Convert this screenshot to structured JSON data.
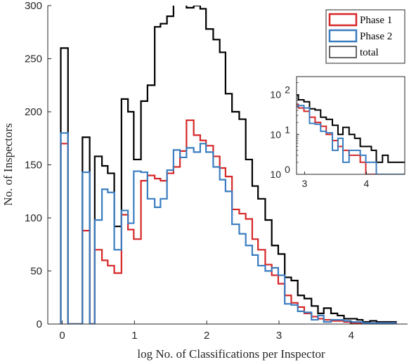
{
  "chart_data": {
    "type": "histogram",
    "xlabel": "log No. of Classifications per Inspector",
    "ylabel": "No. of Inspectors",
    "xlim": [
      -0.2,
      4.78
    ],
    "ylim": [
      0,
      300
    ],
    "xticks": [
      0,
      1,
      2,
      3,
      4
    ],
    "yticks": [
      0,
      50,
      100,
      150,
      200,
      250,
      300
    ],
    "bin_edges": [
      -0.02,
      0.08,
      0.18,
      0.28,
      0.38,
      0.45,
      0.55,
      0.63,
      0.72,
      0.82,
      0.91,
      0.99,
      1.09,
      1.18,
      1.28,
      1.36,
      1.45,
      1.54,
      1.63,
      1.72,
      1.82,
      1.91,
      1.99,
      2.09,
      2.18,
      2.26,
      2.35,
      2.45,
      2.54,
      2.63,
      2.71,
      2.81,
      2.9,
      2.99,
      3.08,
      3.17,
      3.26,
      3.35,
      3.45,
      3.54,
      3.62,
      3.72,
      3.81,
      3.9,
      3.99,
      4.08,
      4.16,
      4.26,
      4.35,
      4.44,
      4.53,
      4.62
    ],
    "series": [
      {
        "name": "Phase 1",
        "color": "#d62728",
        "values": [
          170,
          0,
          0,
          88,
          0,
          70,
          60,
          55,
          48,
          103,
          89,
          80,
          135,
          140,
          137,
          135,
          142,
          148,
          163,
          192,
          178,
          173,
          168,
          158,
          147,
          139,
          108,
          104,
          99,
          80,
          70,
          56,
          46,
          38,
          27,
          20,
          16,
          10,
          7,
          5,
          4,
          3,
          3,
          2,
          1,
          1,
          1,
          1,
          1,
          1,
          1
        ]
      },
      {
        "name": "Phase 2",
        "color": "#3a7dc0",
        "values": [
          180,
          0,
          0,
          143,
          0,
          98,
          127,
          124,
          70,
          107,
          95,
          144,
          143,
          118,
          110,
          118,
          145,
          164,
          157,
          166,
          162,
          170,
          162,
          148,
          136,
          125,
          94,
          85,
          74,
          65,
          55,
          50,
          53,
          46,
          19,
          18,
          12,
          11,
          4,
          8,
          2,
          4,
          4,
          3,
          2,
          2,
          1,
          1,
          1,
          1,
          1
        ]
      },
      {
        "name": "total",
        "color": "#000000",
        "values": [
          260,
          0,
          0,
          176,
          0,
          158,
          149,
          142,
          92,
          212,
          200,
          155,
          210,
          225,
          280,
          283,
          290,
          308,
          304,
          298,
          300,
          297,
          278,
          268,
          256,
          217,
          200,
          193,
          155,
          130,
          118,
          98,
          74,
          66,
          44,
          41,
          27,
          24,
          17,
          10,
          15,
          10,
          8,
          5,
          5,
          4,
          2,
          3,
          2,
          2,
          2
        ]
      }
    ],
    "legend_position": "top-right",
    "inset": {
      "xlim": [
        2.87,
        4.62
      ],
      "ylim_log10": [
        0,
        2.45
      ],
      "xticks": [
        3,
        4
      ],
      "ytick_exponents": [
        0,
        1,
        2
      ],
      "scale": "log"
    }
  }
}
